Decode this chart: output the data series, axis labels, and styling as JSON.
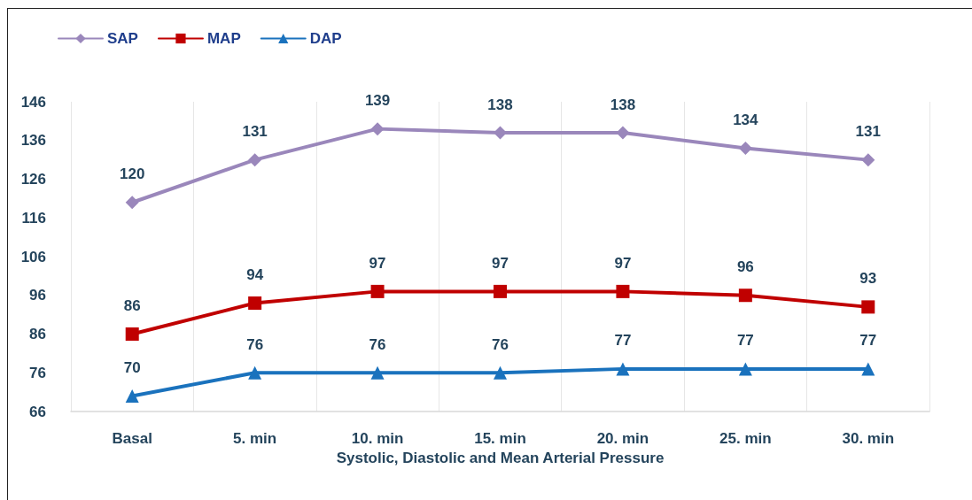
{
  "chart_data": {
    "type": "line",
    "xlabel": "Systolic, Diastolic and Mean Arterial Pressure",
    "categories": [
      "Basal",
      "5. min",
      "10. min",
      "15. min",
      "20. min",
      "25. min",
      "30. min"
    ],
    "series": [
      {
        "name": "SAP",
        "color": "#9a87bb",
        "marker": "diamond",
        "values": [
          120,
          131,
          139,
          138,
          138,
          134,
          131
        ]
      },
      {
        "name": "MAP",
        "color": "#c00000",
        "marker": "square",
        "values": [
          86,
          94,
          97,
          97,
          97,
          96,
          93
        ]
      },
      {
        "name": "DAP",
        "color": "#1a72bd",
        "marker": "triangle",
        "values": [
          70,
          76,
          76,
          76,
          77,
          77,
          77
        ]
      }
    ],
    "ylim": [
      66,
      146
    ],
    "yticks": [
      66,
      76,
      86,
      96,
      106,
      116,
      126,
      136,
      146
    ],
    "grid": "x",
    "legend": "top left",
    "data_labels": true,
    "line_style": "solid"
  }
}
